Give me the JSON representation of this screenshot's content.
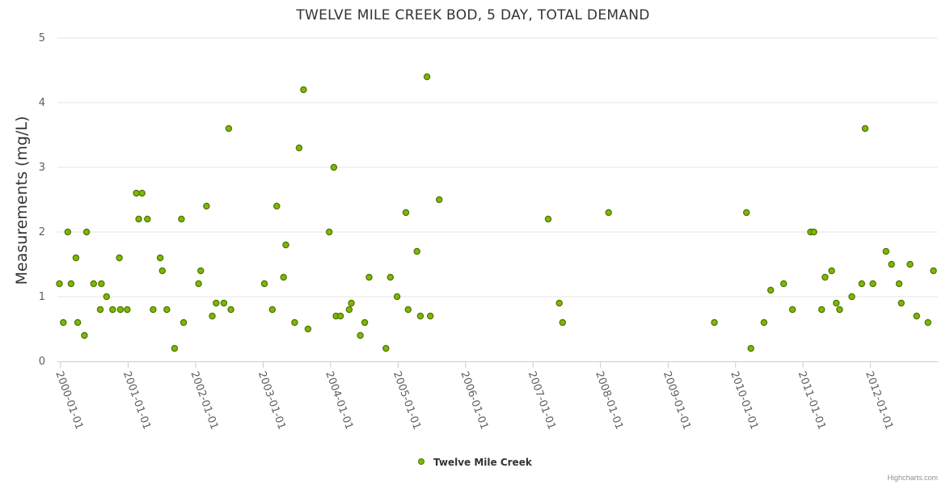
{
  "chart_data": {
    "type": "scatter",
    "title": "TWELVE MILE CREEK BOD, 5 DAY, TOTAL DEMAND",
    "ylabel": "Measurements (mg/L)",
    "xlabel": "",
    "ylim": [
      0,
      5
    ],
    "yticks": [
      "0",
      "1",
      "2",
      "3",
      "4",
      "5"
    ],
    "xlim": [
      "1999-12-15",
      "2012-12-31"
    ],
    "xticks": [
      "2000-01-01",
      "2001-01-01",
      "2002-01-01",
      "2003-01-01",
      "2004-01-01",
      "2005-01-01",
      "2006-01-01",
      "2007-01-01",
      "2008-01-01",
      "2009-01-01",
      "2010-01-01",
      "2011-01-01",
      "2012-01-01"
    ],
    "grid": true,
    "legend_position": "bottom-center",
    "series": [
      {
        "name": "Twelve Mile Creek",
        "color": "#7cb806",
        "stroke": "#4d7300",
        "points": [
          [
            "1999-12-26",
            1.2
          ],
          [
            "2000-01-16",
            0.6
          ],
          [
            "2000-02-09",
            2.0
          ],
          [
            "2000-02-27",
            1.2
          ],
          [
            "2000-03-24",
            1.6
          ],
          [
            "2000-04-03",
            0.6
          ],
          [
            "2000-05-09",
            0.4
          ],
          [
            "2000-05-21",
            2.0
          ],
          [
            "2000-06-28",
            1.2
          ],
          [
            "2000-08-03",
            0.8
          ],
          [
            "2000-08-09",
            1.2
          ],
          [
            "2000-09-06",
            1.0
          ],
          [
            "2000-10-09",
            0.8
          ],
          [
            "2000-11-14",
            1.6
          ],
          [
            "2000-11-20",
            0.8
          ],
          [
            "2000-12-27",
            0.8
          ],
          [
            "2001-02-14",
            2.6
          ],
          [
            "2001-02-27",
            2.2
          ],
          [
            "2001-03-17",
            2.6
          ],
          [
            "2001-04-15",
            2.2
          ],
          [
            "2001-05-16",
            0.8
          ],
          [
            "2001-06-23",
            1.6
          ],
          [
            "2001-07-05",
            1.4
          ],
          [
            "2001-07-29",
            0.8
          ],
          [
            "2001-09-09",
            0.2
          ],
          [
            "2001-10-16",
            2.2
          ],
          [
            "2001-10-28",
            0.6
          ],
          [
            "2002-01-17",
            1.2
          ],
          [
            "2002-01-29",
            1.4
          ],
          [
            "2002-03-01",
            2.4
          ],
          [
            "2002-04-01",
            0.7
          ],
          [
            "2002-04-22",
            0.9
          ],
          [
            "2002-06-03",
            0.9
          ],
          [
            "2002-06-29",
            3.6
          ],
          [
            "2002-07-11",
            0.8
          ],
          [
            "2003-01-08",
            1.2
          ],
          [
            "2003-02-20",
            0.8
          ],
          [
            "2003-03-16",
            2.4
          ],
          [
            "2003-04-22",
            1.3
          ],
          [
            "2003-05-04",
            1.8
          ],
          [
            "2003-06-21",
            0.6
          ],
          [
            "2003-07-15",
            3.3
          ],
          [
            "2003-08-08",
            4.2
          ],
          [
            "2003-09-01",
            0.5
          ],
          [
            "2003-12-25",
            2.0
          ],
          [
            "2004-01-19",
            3.0
          ],
          [
            "2004-01-31",
            0.7
          ],
          [
            "2004-02-24",
            0.7
          ],
          [
            "2004-04-11",
            0.8
          ],
          [
            "2004-04-23",
            0.9
          ],
          [
            "2004-06-10",
            0.4
          ],
          [
            "2004-07-04",
            0.6
          ],
          [
            "2004-07-28",
            1.3
          ],
          [
            "2004-10-27",
            0.2
          ],
          [
            "2004-11-20",
            1.3
          ],
          [
            "2004-12-26",
            1.0
          ],
          [
            "2005-02-12",
            2.3
          ],
          [
            "2005-02-24",
            0.8
          ],
          [
            "2005-04-13",
            1.7
          ],
          [
            "2005-05-01",
            0.7
          ],
          [
            "2005-06-06",
            4.4
          ],
          [
            "2005-06-24",
            0.7
          ],
          [
            "2005-08-11",
            2.5
          ],
          [
            "2007-03-24",
            2.2
          ],
          [
            "2007-05-23",
            0.9
          ],
          [
            "2007-06-10",
            0.6
          ],
          [
            "2008-02-14",
            2.3
          ],
          [
            "2009-09-08",
            0.6
          ],
          [
            "2010-03-01",
            2.3
          ],
          [
            "2010-03-25",
            0.2
          ],
          [
            "2010-06-04",
            0.6
          ],
          [
            "2010-07-10",
            1.1
          ],
          [
            "2010-09-18",
            1.2
          ],
          [
            "2010-11-05",
            0.8
          ],
          [
            "2011-02-11",
            2.0
          ],
          [
            "2011-03-01",
            2.0
          ],
          [
            "2011-04-12",
            0.8
          ],
          [
            "2011-04-30",
            1.3
          ],
          [
            "2011-06-05",
            1.4
          ],
          [
            "2011-06-30",
            0.9
          ],
          [
            "2011-07-18",
            0.8
          ],
          [
            "2011-09-22",
            1.0
          ],
          [
            "2011-11-15",
            1.2
          ],
          [
            "2011-12-03",
            3.6
          ],
          [
            "2012-01-14",
            1.2
          ],
          [
            "2012-03-25",
            1.7
          ],
          [
            "2012-04-24",
            1.5
          ],
          [
            "2012-06-04",
            1.2
          ],
          [
            "2012-06-16",
            0.9
          ],
          [
            "2012-08-02",
            1.5
          ],
          [
            "2012-09-07",
            0.7
          ],
          [
            "2012-11-07",
            0.6
          ],
          [
            "2012-12-07",
            1.4
          ]
        ]
      }
    ]
  },
  "credits": "Highcharts.com"
}
